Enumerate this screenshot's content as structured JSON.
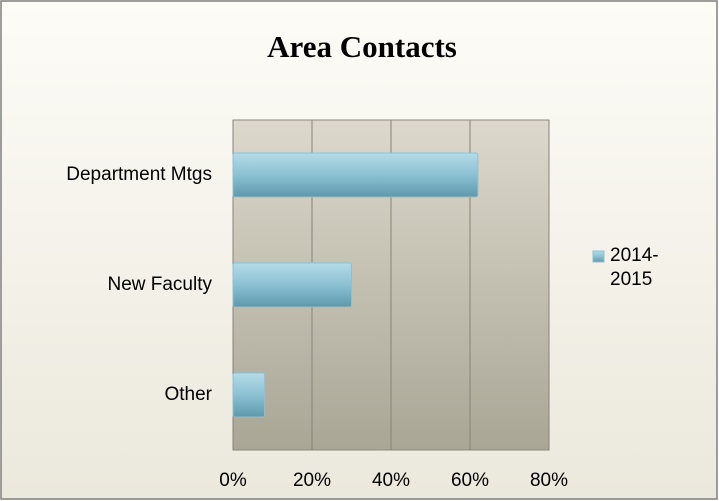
{
  "chart_data": {
    "type": "barh",
    "title": "Area Contacts",
    "categories": [
      "Department Mtgs",
      "New Faculty",
      "Other"
    ],
    "series": [
      {
        "name": "2014-2015",
        "color": "#8cc1d3",
        "values": [
          62,
          30,
          8
        ]
      }
    ],
    "xlim": [
      0,
      80
    ],
    "xticks": [
      {
        "value": 0,
        "label": "0%"
      },
      {
        "value": 20,
        "label": "20%"
      },
      {
        "value": 40,
        "label": "40%"
      },
      {
        "value": 60,
        "label": "60%"
      },
      {
        "value": 80,
        "label": "80%"
      }
    ],
    "grid": true,
    "legend": "right"
  }
}
